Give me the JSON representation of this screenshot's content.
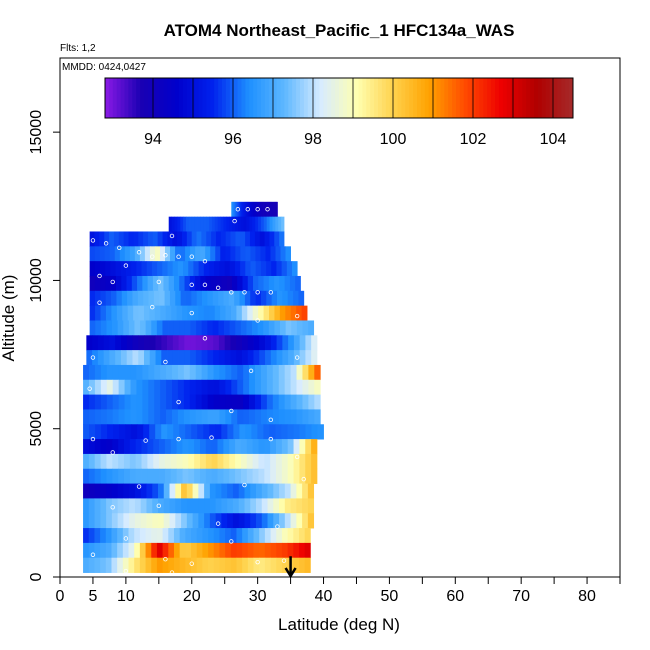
{
  "chart_data": {
    "type": "heatmap",
    "title": "ATOM4 Northeast_Pacific_1 HFC134a_WAS",
    "flights_label": "Flts: 1,2",
    "dates_label": "MMDD: 0424,0427",
    "xlabel": "Latitude (deg N)",
    "ylabel": "Altitude (m)",
    "xlim": [
      0,
      85
    ],
    "ylim": [
      0,
      17500
    ],
    "x_ticks": [
      0,
      5,
      10,
      20,
      30,
      40,
      50,
      60,
      70,
      80
    ],
    "y_ticks": [
      0,
      5000,
      10000,
      15000
    ],
    "colorbar": {
      "min": 92.8,
      "max": 104.5,
      "ticks": [
        94,
        96,
        98,
        100,
        102,
        104
      ],
      "colors": [
        "#8b1ae6",
        "#1a00b3",
        "#0000cc",
        "#0022ee",
        "#1e90ff",
        "#5fb8ff",
        "#d8ecff",
        "#ffffb0",
        "#ffd24d",
        "#ffa200",
        "#ff4b00",
        "#ee0000",
        "#b00000",
        "#a52a2a"
      ]
    },
    "marker": {
      "latitude": 35,
      "altitude_top": 700,
      "altitude_bottom": 0
    },
    "layers": [
      {
        "alt": 12400,
        "lat_min": 26,
        "lat_max": 33,
        "values": [
          96.5,
          95,
          94,
          93.8
        ]
      },
      {
        "alt": 11900,
        "lat_min": 16.5,
        "lat_max": 34,
        "values": [
          95,
          96,
          96,
          95.5,
          95,
          96,
          97.5
        ]
      },
      {
        "alt": 11400,
        "lat_min": 4.5,
        "lat_max": 34,
        "values": [
          95,
          96,
          95.5,
          96,
          95,
          96.2,
          95.5,
          96,
          95,
          96.3
        ]
      },
      {
        "alt": 10900,
        "lat_min": 4.5,
        "lat_max": 35,
        "values": [
          95.8,
          96,
          96.8,
          99,
          96,
          97,
          95.4,
          96,
          95.5,
          96.5
        ]
      },
      {
        "alt": 10400,
        "lat_min": 4.5,
        "lat_max": 36,
        "values": [
          94.5,
          95,
          95.5,
          96,
          96.5,
          95.5,
          95,
          96,
          95.5,
          96.5
        ]
      },
      {
        "alt": 9900,
        "lat_min": 4.5,
        "lat_max": 36.5,
        "values": [
          94,
          94.5,
          96,
          97.5,
          96,
          94.5,
          94,
          96,
          96.5,
          96
        ]
      },
      {
        "alt": 9400,
        "lat_min": 4.5,
        "lat_max": 37,
        "values": [
          95.5,
          96,
          97,
          97.5,
          96,
          96.5,
          97,
          95.5,
          96.5,
          96
        ]
      },
      {
        "alt": 8900,
        "lat_min": 4.5,
        "lat_max": 37.5,
        "values": [
          95.5,
          96.5,
          97.5,
          97,
          96.5,
          96.3,
          97,
          99,
          101,
          102
        ]
      },
      {
        "alt": 8400,
        "lat_min": 4.5,
        "lat_max": 38.5,
        "values": [
          96,
          96.5,
          97.5,
          96,
          96,
          95.5,
          96,
          96.5,
          97.5,
          97
        ]
      },
      {
        "alt": 7900,
        "lat_min": 4,
        "lat_max": 39,
        "values": [
          94.5,
          95,
          94,
          93.5,
          93,
          93.2,
          94,
          95,
          96.5,
          98.5
        ]
      },
      {
        "alt": 7400,
        "lat_min": 4,
        "lat_max": 39,
        "values": [
          96,
          97,
          98,
          96,
          96,
          95.5,
          95,
          96,
          97,
          98.5
        ]
      },
      {
        "alt": 6900,
        "lat_min": 3.5,
        "lat_max": 39.5,
        "values": [
          96,
          96.5,
          96.5,
          97,
          97.5,
          96.5,
          96,
          97,
          98,
          102
        ]
      },
      {
        "alt": 6400,
        "lat_min": 3.5,
        "lat_max": 39.5,
        "values": [
          97,
          98.5,
          96.5,
          96,
          95.5,
          95,
          96,
          97,
          98,
          99
        ]
      },
      {
        "alt": 5900,
        "lat_min": 3.5,
        "lat_max": 39.5,
        "values": [
          95.5,
          96,
          96.5,
          96,
          95.5,
          94.5,
          94.3,
          96,
          97,
          98
        ]
      },
      {
        "alt": 5400,
        "lat_min": 3.5,
        "lat_max": 39.5,
        "values": [
          96,
          96.2,
          96.5,
          96,
          96.5,
          96.8,
          96,
          96.3,
          96.5,
          97
        ]
      },
      {
        "alt": 4900,
        "lat_min": 3.5,
        "lat_max": 40,
        "values": [
          96,
          95.5,
          95,
          96.5,
          96,
          95.5,
          96.5,
          96,
          96.2,
          96.5
        ]
      },
      {
        "alt": 4400,
        "lat_min": 3.5,
        "lat_max": 39,
        "values": [
          95,
          94.5,
          95.5,
          96,
          96.5,
          96,
          97,
          96.5,
          97.5,
          101
        ]
      },
      {
        "alt": 3900,
        "lat_min": 3.5,
        "lat_max": 39,
        "values": [
          97,
          98,
          97.5,
          98.5,
          99,
          100,
          99,
          98,
          99,
          100.5
        ]
      },
      {
        "alt": 3400,
        "lat_min": 3.5,
        "lat_max": 39,
        "values": [
          96,
          96.5,
          97,
          97,
          97.5,
          97,
          97.5,
          98,
          99,
          100.5
        ]
      },
      {
        "alt": 2900,
        "lat_min": 3.5,
        "lat_max": 38.5,
        "values": [
          94,
          94.5,
          95,
          96,
          100.5,
          96.5,
          96,
          97,
          98,
          100.5
        ]
      },
      {
        "alt": 2400,
        "lat_min": 3.5,
        "lat_max": 38.5,
        "values": [
          96.5,
          97.5,
          98,
          97,
          96.5,
          96.5,
          97,
          98,
          99.5,
          100
        ]
      },
      {
        "alt": 1900,
        "lat_min": 3.5,
        "lat_max": 38.5,
        "values": [
          96.5,
          97.5,
          98.5,
          99,
          97.5,
          96,
          95,
          96,
          98,
          100.5
        ]
      },
      {
        "alt": 1400,
        "lat_min": 3.5,
        "lat_max": 38,
        "values": [
          95.5,
          96.5,
          98,
          98.5,
          97,
          96.5,
          96,
          97.5,
          99,
          100
        ]
      },
      {
        "alt": 900,
        "lat_min": 3.5,
        "lat_max": 38,
        "values": [
          96.5,
          97,
          98.5,
          103,
          100,
          101,
          102,
          101.5,
          102,
          103
        ]
      },
      {
        "alt": 400,
        "lat_min": 3.5,
        "lat_max": 38,
        "values": [
          97,
          97.5,
          99.5,
          101,
          100.5,
          100,
          100.3,
          99.5,
          100,
          100.5
        ]
      }
    ],
    "points": [
      [
        27,
        12400
      ],
      [
        28.5,
        12400
      ],
      [
        30,
        12400
      ],
      [
        31.5,
        12400
      ],
      [
        26.5,
        12000
      ],
      [
        17,
        11500
      ],
      [
        5,
        11350
      ],
      [
        7,
        11250
      ],
      [
        9,
        11100
      ],
      [
        12,
        10950
      ],
      [
        14,
        10800
      ],
      [
        16,
        10850
      ],
      [
        18,
        10800
      ],
      [
        20,
        10800
      ],
      [
        22,
        10650
      ],
      [
        10,
        10500
      ],
      [
        6,
        10150
      ],
      [
        8,
        9950
      ],
      [
        15,
        9950
      ],
      [
        20,
        9850
      ],
      [
        22,
        9850
      ],
      [
        24,
        9750
      ],
      [
        26,
        9600
      ],
      [
        28,
        9600
      ],
      [
        30,
        9600
      ],
      [
        32,
        9600
      ],
      [
        6,
        9250
      ],
      [
        14,
        9100
      ],
      [
        20,
        8900
      ],
      [
        30,
        8650
      ],
      [
        36,
        8800
      ],
      [
        22,
        8050
      ],
      [
        36,
        7400
      ],
      [
        5,
        7400
      ],
      [
        16,
        7250
      ],
      [
        29,
        6950
      ],
      [
        4.5,
        6350
      ],
      [
        18,
        5900
      ],
      [
        26,
        5600
      ],
      [
        32,
        5300
      ],
      [
        5,
        4650
      ],
      [
        13,
        4600
      ],
      [
        18,
        4650
      ],
      [
        23,
        4700
      ],
      [
        32,
        4650
      ],
      [
        8,
        4200
      ],
      [
        36,
        4050
      ],
      [
        12,
        3050
      ],
      [
        28,
        3100
      ],
      [
        37,
        3300
      ],
      [
        8,
        2350
      ],
      [
        15,
        2400
      ],
      [
        24,
        1800
      ],
      [
        33,
        1700
      ],
      [
        10,
        1300
      ],
      [
        26,
        1200
      ],
      [
        5,
        750
      ],
      [
        16,
        600
      ],
      [
        20,
        450
      ],
      [
        30,
        500
      ],
      [
        34,
        550
      ],
      [
        10,
        200
      ],
      [
        17,
        150
      ]
    ]
  }
}
